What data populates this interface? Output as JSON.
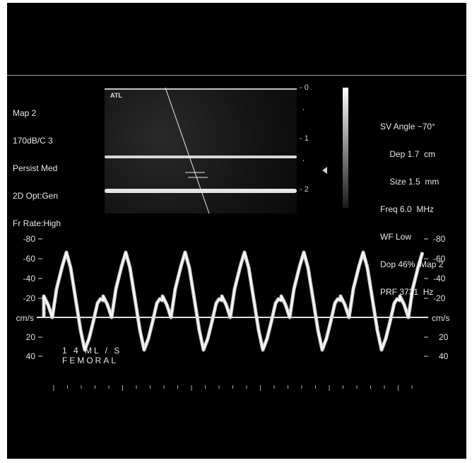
{
  "left_params": {
    "map": "Map 2",
    "dynamic": "170dB/C 3",
    "persist": "Persist Med",
    "opt": "2D Opt:Gen",
    "frame": "Fr Rate:High"
  },
  "right_params": {
    "sv_angle": "SV Angle −70°",
    "dep": "    Dep 1.7  cm",
    "size": "    Size 1.5  mm",
    "freq": "Freq 6.0  MHz",
    "wf": "WF Low",
    "dop": "Dop 46%  Map 2",
    "prf": "PRF 3731  Hz"
  },
  "bmode": {
    "logo": "ATL",
    "depth_marks": [
      "- 0",
      "- 1",
      "- 2"
    ]
  },
  "doppler_axis": {
    "unit": "cm/s",
    "left_ticks": [
      "-80",
      "-60",
      "-40",
      "-20",
      "20",
      "40"
    ],
    "right_ticks": [
      "-80",
      "-60",
      "-40",
      "-20",
      "20",
      "40"
    ]
  },
  "annotation": {
    "line1": "1 4  ML / S",
    "line2": "FEMORAL"
  },
  "colors": {
    "background": "#000000",
    "text": "#e8e8e8",
    "spectrum": "#f0f0f0"
  }
}
